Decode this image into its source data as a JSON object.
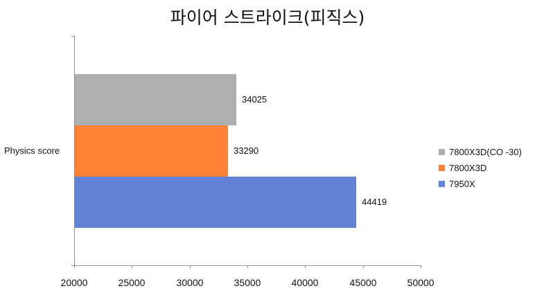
{
  "chart_data": {
    "type": "bar",
    "orientation": "horizontal",
    "title": "파이어 스트라이크(피직스)",
    "categories": [
      "Physics score"
    ],
    "series": [
      {
        "name": "7800X3D(CO -30)",
        "values": [
          34025
        ],
        "color": "#afafaf"
      },
      {
        "name": "7800X3D",
        "values": [
          33290
        ],
        "color": "#fe8136"
      },
      {
        "name": "7950X",
        "values": [
          44419
        ],
        "color": "#6383d6"
      }
    ],
    "xlabel": "",
    "ylabel": "",
    "xlim": [
      20000,
      50000
    ],
    "x_ticks": [
      "20000",
      "25000",
      "30000",
      "35000",
      "40000",
      "45000",
      "50000"
    ],
    "grid": false,
    "legend_position": "right",
    "data_labels": [
      "34025",
      "33290",
      "44419"
    ]
  }
}
